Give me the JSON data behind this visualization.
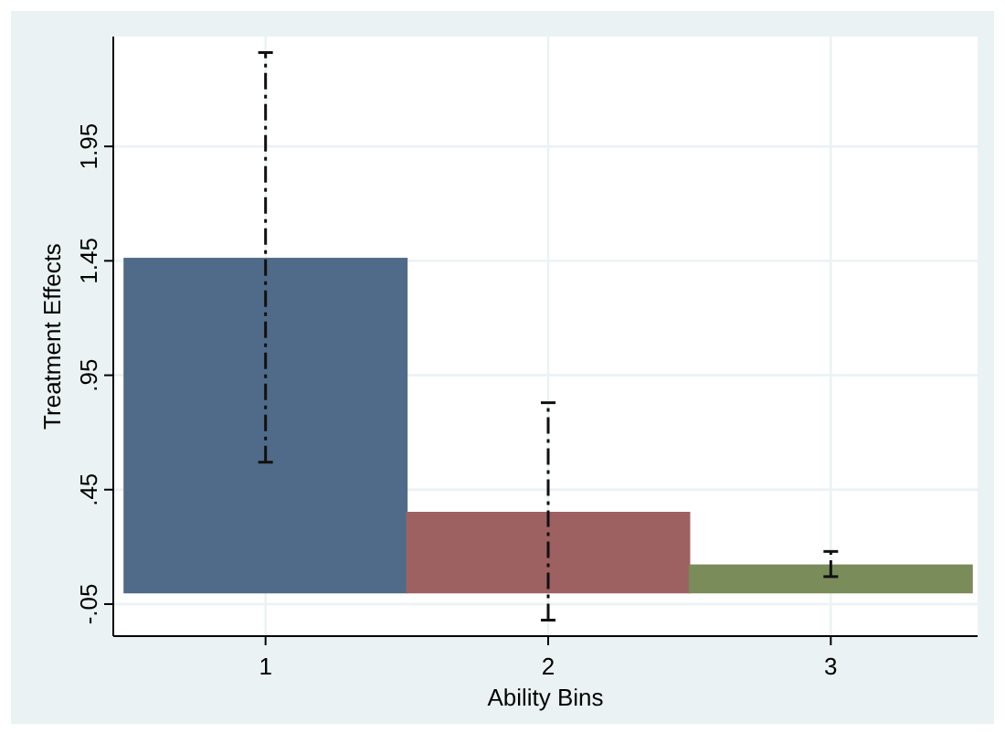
{
  "chart_data": {
    "type": "bar",
    "xlabel": "Ability Bins",
    "ylabel": "Treatment Effects",
    "categories": [
      "1",
      "2",
      "3"
    ],
    "values": [
      1.46,
      0.35,
      0.12
    ],
    "colors": [
      "#4f6b89",
      "#9e6162",
      "#7a8c5a"
    ],
    "errors": [
      [
        0.57,
        2.36
      ],
      [
        -0.12,
        0.83
      ],
      [
        0.07,
        0.18
      ]
    ],
    "ylim": [
      -0.19,
      2.43
    ],
    "yticks": [
      {
        "value": -0.05,
        "label": "-.05"
      },
      {
        "value": 0.45,
        "label": ".45"
      },
      {
        "value": 0.95,
        "label": ".95"
      },
      {
        "value": 1.45,
        "label": "1.45"
      },
      {
        "value": 1.95,
        "label": "1.95"
      }
    ],
    "grid": true
  }
}
